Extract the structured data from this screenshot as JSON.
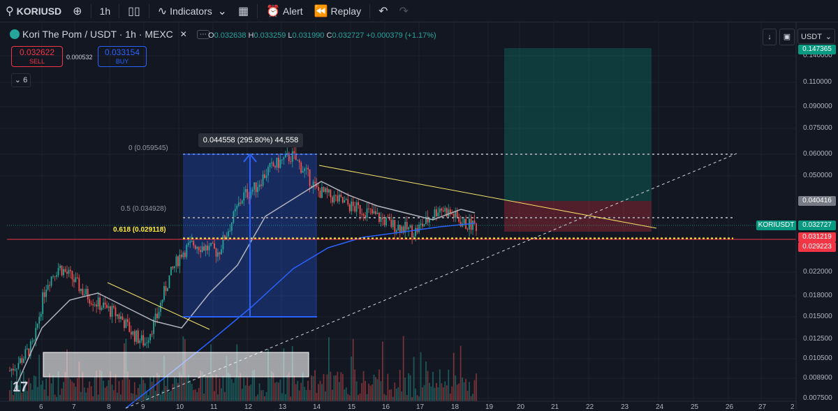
{
  "toolbar": {
    "symbol": "KORIUSD",
    "interval": "1h",
    "indicators_label": "Indicators",
    "alert_label": "Alert",
    "replay_label": "Replay"
  },
  "legend": {
    "title": "Kori The Pom / USDT · 1h · MEXC",
    "ohlc": {
      "o_key": "O",
      "o": "0.032638",
      "h_key": "H",
      "h": "0.033259",
      "l_key": "L",
      "l": "0.031990",
      "c_key": "C",
      "c": "0.032727",
      "change": "+0.000379 (+1.17%)"
    }
  },
  "trade": {
    "sell_price": "0.032622",
    "sell_label": "SELL",
    "spread": "0.000532",
    "buy_price": "0.033154",
    "buy_label": "BUY"
  },
  "indicator_toggle": "6",
  "currency_select": "USDT",
  "price_axis": [
    "0.147365",
    "0.140000",
    "0.110000",
    "0.090000",
    "0.075000",
    "0.060000",
    "0.050000",
    "0.040416",
    "0.032727",
    "0.031219",
    "0.029223",
    "0.022000",
    "0.018000",
    "0.015000",
    "0.012500",
    "0.010500",
    "0.008900",
    "0.007500"
  ],
  "price_labels": {
    "top": "0.147365",
    "target": "0.040416",
    "current": "0.032727",
    "red1": "0.031219",
    "red2": "0.029223",
    "symbol_tag": "KORIUSDT"
  },
  "time_axis": [
    "6",
    "7",
    "8",
    "9",
    "10",
    "11",
    "12",
    "13",
    "14",
    "15",
    "16",
    "17",
    "18",
    "19",
    "20",
    "21",
    "22",
    "23",
    "24",
    "25",
    "26",
    "27",
    "2"
  ],
  "fib": {
    "level0": "0 (0.059545)",
    "level05": "0.5 (0.034928)",
    "level618": "0.618 (0.029118)"
  },
  "measure_tip": "0.044558 (295.80%) 44,558",
  "colors": {
    "bg": "#131722",
    "up": "#26a69a",
    "down": "#ef5350",
    "fib618": "#ffeb3b",
    "trend": "#f7e36b",
    "ma_blue": "#2962ff",
    "ma_gray": "#9598a1"
  },
  "chart_data": {
    "type": "candlestick",
    "x_labels": [
      "6",
      "7",
      "8",
      "9",
      "10",
      "11",
      "12",
      "13",
      "14",
      "15",
      "16",
      "17",
      "18"
    ],
    "close_path": [
      0.0095,
      0.0105,
      0.012,
      0.02,
      0.023,
      0.021,
      0.0185,
      0.017,
      0.016,
      0.015,
      0.013,
      0.012,
      0.015,
      0.021,
      0.026,
      0.028,
      0.027,
      0.026,
      0.033,
      0.042,
      0.045,
      0.052,
      0.056,
      0.059,
      0.052,
      0.044,
      0.042,
      0.04,
      0.038,
      0.037,
      0.035,
      0.033,
      0.032,
      0.031,
      0.034,
      0.038,
      0.036,
      0.033,
      0.0327
    ],
    "yscale": "log",
    "ylim": [
      0.0075,
      0.1474
    ]
  }
}
